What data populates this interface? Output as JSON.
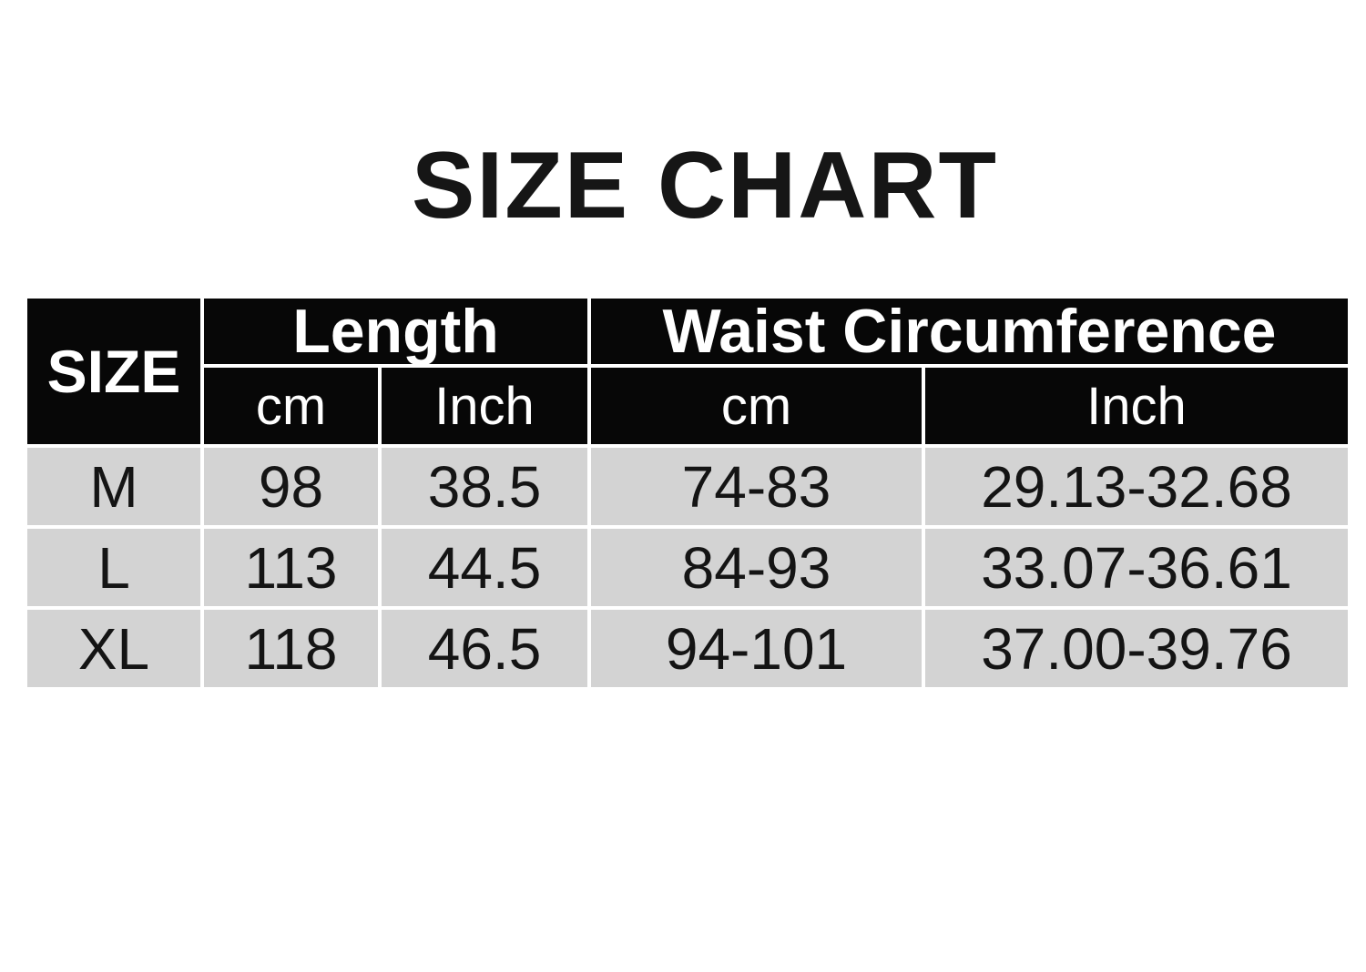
{
  "title": "SIZE CHART",
  "table": {
    "corner_label": "SIZE",
    "groups": [
      {
        "label": "Length",
        "sub": [
          "cm",
          "Inch"
        ]
      },
      {
        "label": "Waist Circumference",
        "sub": [
          "cm",
          "Inch"
        ]
      }
    ],
    "rows": [
      {
        "size": "M",
        "length_cm": "98",
        "length_inch": "38.5",
        "waist_cm": "74-83",
        "waist_inch": "29.13-32.68"
      },
      {
        "size": "L",
        "length_cm": "113",
        "length_inch": "44.5",
        "waist_cm": "84-93",
        "waist_inch": "33.07-36.61"
      },
      {
        "size": "XL",
        "length_cm": "118",
        "length_inch": "46.5",
        "waist_cm": "94-101",
        "waist_inch": "37.00-39.76"
      }
    ]
  },
  "colors": {
    "header_bg": "#070707",
    "header_text": "#ffffff",
    "cell_bg": "#d3d3d3",
    "cell_text": "#141414",
    "canvas": "#ffffff",
    "title_text": "#161616"
  },
  "chart_data": {
    "type": "table",
    "title": "SIZE CHART",
    "columns": [
      "SIZE",
      "Length cm",
      "Length Inch",
      "Waist Circumference cm",
      "Waist Circumference Inch"
    ],
    "rows": [
      [
        "M",
        "98",
        "38.5",
        "74-83",
        "29.13-32.68"
      ],
      [
        "L",
        "113",
        "44.5",
        "84-93",
        "33.07-36.61"
      ],
      [
        "XL",
        "118",
        "46.5",
        "94-101",
        "37.00-39.76"
      ]
    ]
  }
}
